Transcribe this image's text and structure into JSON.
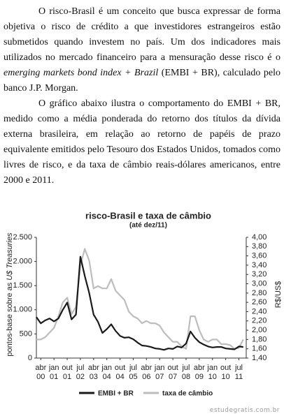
{
  "paragraphs": [
    [
      "O risco-Brasil é um conceito que busca expressar de forma objetiva o risco de crédito a que investidores estrangeiros estão submetidos quando investem no país. Um dos indicadores mais utilizados no mercado financeiro para a mensuração desse risco é o ",
      "emerging markets bond index + Brazil",
      " (EMBI + BR), calculado pelo banco J.P. Morgan."
    ],
    [
      "O gráfico abaixo ilustra o comportamento do EMBI + BR, medido como a média ponderada do retorno dos títulos da dívida externa brasileira, em relação ao retorno de papéis de prazo equivalente emitidos pelo Tesouro dos Estados Unidos, tomados como livres de risco, e da taxa de câmbio reais-dólares americanos, entre 2000 e 2011."
    ]
  ],
  "chart_data": {
    "type": "line",
    "title": "risco-Brasil e taxa de câmbio",
    "subtitle": "(até dez/11)",
    "y_label": [
      "pontos-base sobre as ",
      "U$ Treasuries"
    ],
    "y2_label": "R$/US$",
    "x": [
      "2000-01",
      "2000-04",
      "2000-07",
      "2000-10",
      "2001-01",
      "2001-04",
      "2001-07",
      "2001-10",
      "2002-01",
      "2002-04",
      "2002-07",
      "2002-10",
      "2003-01",
      "2003-04",
      "2003-07",
      "2003-10",
      "2004-01",
      "2004-04",
      "2004-07",
      "2004-10",
      "2005-01",
      "2005-04",
      "2005-07",
      "2005-10",
      "2006-01",
      "2006-04",
      "2006-07",
      "2006-10",
      "2007-01",
      "2007-04",
      "2007-07",
      "2007-10",
      "2008-01",
      "2008-04",
      "2008-07",
      "2008-10",
      "2009-01",
      "2009-04",
      "2009-07",
      "2009-10",
      "2010-01",
      "2010-04",
      "2010-07",
      "2010-10",
      "2011-01",
      "2011-04",
      "2011-07",
      "2011-10"
    ],
    "xlim": [
      "2000-01",
      "2011-12"
    ],
    "xticks": [
      {
        "value": "2000-04",
        "label": [
          "abr",
          "00"
        ]
      },
      {
        "value": "2001-01",
        "label": [
          "jan",
          "01"
        ]
      },
      {
        "value": "2001-10",
        "label": [
          "out",
          "01"
        ]
      },
      {
        "value": "2002-07",
        "label": [
          "jul",
          "02"
        ]
      },
      {
        "value": "2003-04",
        "label": [
          "abr",
          "03"
        ]
      },
      {
        "value": "2004-01",
        "label": [
          "jan",
          "04"
        ]
      },
      {
        "value": "2004-10",
        "label": [
          "out",
          "04"
        ]
      },
      {
        "value": "2005-07",
        "label": [
          "jul",
          "05"
        ]
      },
      {
        "value": "2006-04",
        "label": [
          "abr",
          "06"
        ]
      },
      {
        "value": "2007-01",
        "label": [
          "jan",
          "07"
        ]
      },
      {
        "value": "2007-10",
        "label": [
          "out",
          "07"
        ]
      },
      {
        "value": "2008-07",
        "label": [
          "jul",
          "08"
        ]
      },
      {
        "value": "2009-04",
        "label": [
          "abr",
          "09"
        ]
      },
      {
        "value": "2010-01",
        "label": [
          "jan",
          "10"
        ]
      },
      {
        "value": "2010-10",
        "label": [
          "out",
          "10"
        ]
      },
      {
        "value": "2011-07",
        "label": [
          "jul",
          "11"
        ]
      }
    ],
    "ylim": [
      0,
      2500
    ],
    "yticks": [
      0,
      500,
      {
        "value": 1000,
        "label": "1.000"
      },
      {
        "value": 1500,
        "label": "1.500"
      },
      {
        "value": 2000,
        "label": "2.000"
      },
      {
        "value": 2500,
        "label": "2.500"
      }
    ],
    "y2lim": [
      1.4,
      4.0
    ],
    "y2ticks": [
      {
        "value": 1.4,
        "label": "1,40"
      },
      {
        "value": 1.6,
        "label": "1,60"
      },
      {
        "value": 1.8,
        "label": "1,80"
      },
      {
        "value": 2.0,
        "label": "2,00"
      },
      {
        "value": 2.2,
        "label": "2,20"
      },
      {
        "value": 2.4,
        "label": "2,40"
      },
      {
        "value": 2.6,
        "label": "2,60"
      },
      {
        "value": 2.8,
        "label": "2,80"
      },
      {
        "value": 3.0,
        "label": "3,00"
      },
      {
        "value": 3.2,
        "label": "3,20"
      },
      {
        "value": 3.4,
        "label": "3,40"
      },
      {
        "value": 3.6,
        "label": "3,60"
      },
      {
        "value": 3.8,
        "label": "3,80"
      },
      {
        "value": 4.0,
        "label": "4,00"
      }
    ],
    "series": [
      {
        "name": "EMBI + BR",
        "color": "#1a1a1a",
        "values": [
          850,
          720,
          780,
          820,
          760,
          820,
          1000,
          1150,
          800,
          900,
          2100,
          1700,
          1350,
          900,
          750,
          520,
          600,
          700,
          560,
          460,
          420,
          430,
          390,
          320,
          260,
          250,
          230,
          200,
          190,
          170,
          200,
          190,
          240,
          220,
          300,
          550,
          420,
          330,
          280,
          240,
          220,
          230,
          230,
          200,
          190,
          180,
          240,
          230
        ]
      },
      {
        "name": "taxa de câmbio",
        "color": "#bdbdbd",
        "axis": "y2",
        "values": [
          1.8,
          1.8,
          1.85,
          1.95,
          2.05,
          2.3,
          2.6,
          2.7,
          2.35,
          2.5,
          3.4,
          3.75,
          3.5,
          2.9,
          2.95,
          2.9,
          2.9,
          3.1,
          2.85,
          2.75,
          2.65,
          2.4,
          2.3,
          2.25,
          2.15,
          2.2,
          2.15,
          2.15,
          2.1,
          1.95,
          1.85,
          1.75,
          1.75,
          1.65,
          1.6,
          2.3,
          2.3,
          2.0,
          1.8,
          1.75,
          1.8,
          1.8,
          1.7,
          1.7,
          1.68,
          1.6,
          1.62,
          1.8
        ]
      }
    ]
  },
  "watermark": "estudegratis.com.br"
}
